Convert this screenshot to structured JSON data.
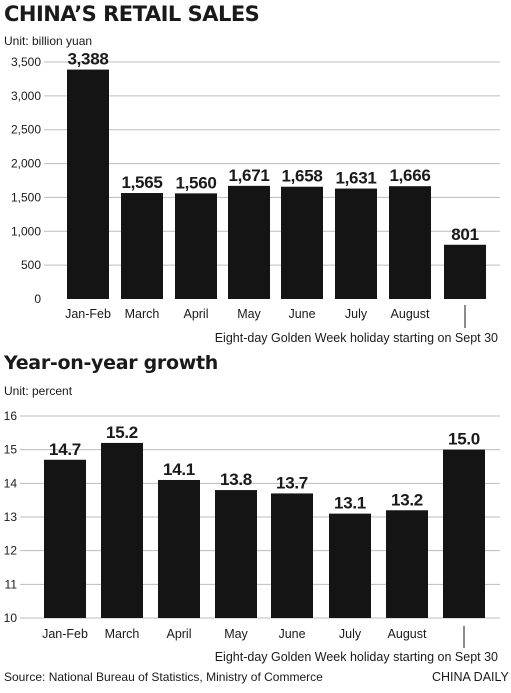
{
  "chart_data": [
    {
      "type": "bar",
      "title": "CHINA’S RETAIL SALES",
      "unit_label": "Unit: billion yuan",
      "categories": [
        "Jan-Feb",
        "March",
        "April",
        "May",
        "June",
        "July",
        "August",
        ""
      ],
      "values": [
        3388,
        1565,
        1560,
        1671,
        1658,
        1631,
        1666,
        801
      ],
      "value_labels": [
        "3,388",
        "1,565",
        "1,560",
        "1,671",
        "1,658",
        "1,631",
        "1,666",
        "801"
      ],
      "ylim": [
        0,
        3500
      ],
      "yticks": [
        0,
        500,
        1000,
        1500,
        2000,
        2500,
        3000,
        3500
      ],
      "ytick_labels": [
        "0",
        "500",
        "1,000",
        "1,500",
        "2,000",
        "2,500",
        "3,000",
        "3,500"
      ],
      "grid": true,
      "annotation": "Eight-day Golden Week holiday starting on Sept 30"
    },
    {
      "type": "bar",
      "title": "Year-on-year growth",
      "unit_label": "Unit: percent",
      "categories": [
        "Jan-Feb",
        "March",
        "April",
        "May",
        "June",
        "July",
        "August",
        ""
      ],
      "values": [
        14.7,
        15.2,
        14.1,
        13.8,
        13.7,
        13.1,
        13.2,
        15.0
      ],
      "value_labels": [
        "14.7",
        "15.2",
        "14.1",
        "13.8",
        "13.7",
        "13.1",
        "13.2",
        "15.0"
      ],
      "ylim": [
        10,
        16
      ],
      "yticks": [
        10,
        11,
        12,
        13,
        14,
        15,
        16
      ],
      "ytick_labels": [
        "10",
        "11",
        "12",
        "13",
        "14",
        "15",
        "16"
      ],
      "grid": true,
      "annotation": "Eight-day Golden Week holiday starting on Sept 30"
    }
  ],
  "source": "Source: National Bureau of Statistics, Ministry of Commerce",
  "credit": "CHINA DAILY",
  "colors": {
    "bar": "#141414",
    "grid": "#bdbdbd",
    "text": "#1a1a1a"
  }
}
